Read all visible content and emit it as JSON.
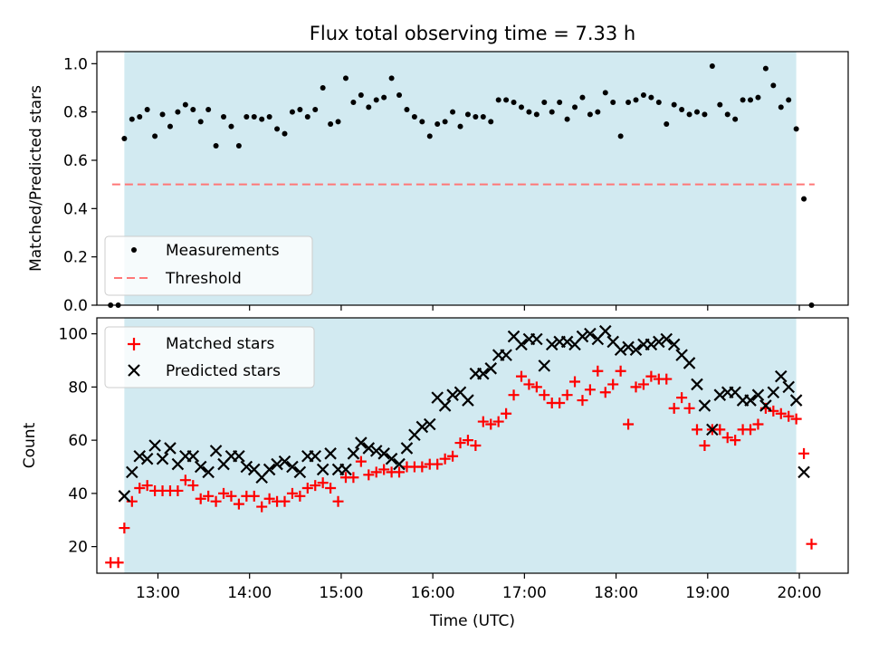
{
  "chart_data": [
    {
      "type": "scatter",
      "title": "Flux total observing time = 7.33 h",
      "xlabel": "",
      "ylabel": "Matched/Predicted stars",
      "xlim": [
        "12:20",
        "20:32"
      ],
      "ylim": [
        0,
        1.05
      ],
      "yticks": [
        "0.0",
        "0.2",
        "0.4",
        "0.6",
        "0.8",
        "1.0"
      ],
      "shaded_span": [
        "12:38",
        "19:58"
      ],
      "shade_color": "#add8e6",
      "legend_position": "lower-left",
      "threshold": {
        "name": "Threshold",
        "y": 0.5,
        "x": [
          "12:30",
          "20:10"
        ],
        "color": "#ff7777",
        "style": "dashed"
      },
      "series": [
        {
          "name": "Measurements",
          "color": "#000000",
          "marker": "dot",
          "x": [
            "12:29",
            "12:34",
            "12:38",
            "12:43",
            "12:48",
            "12:53",
            "12:58",
            "13:03",
            "13:08",
            "13:13",
            "13:18",
            "13:23",
            "13:28",
            "13:33",
            "13:38",
            "13:43",
            "13:48",
            "13:53",
            "13:58",
            "14:03",
            "14:08",
            "14:13",
            "14:18",
            "14:23",
            "14:28",
            "14:33",
            "14:38",
            "14:43",
            "14:48",
            "14:53",
            "14:58",
            "15:03",
            "15:08",
            "15:13",
            "15:18",
            "15:23",
            "15:28",
            "15:33",
            "15:38",
            "15:43",
            "15:48",
            "15:53",
            "15:58",
            "16:03",
            "16:08",
            "16:13",
            "16:18",
            "16:23",
            "16:28",
            "16:33",
            "16:38",
            "16:43",
            "16:48",
            "16:53",
            "16:58",
            "17:03",
            "17:08",
            "17:13",
            "17:18",
            "17:23",
            "17:28",
            "17:33",
            "17:38",
            "17:43",
            "17:48",
            "17:53",
            "17:58",
            "18:03",
            "18:08",
            "18:13",
            "18:18",
            "18:23",
            "18:28",
            "18:33",
            "18:38",
            "18:43",
            "18:48",
            "18:53",
            "18:58",
            "19:03",
            "19:08",
            "19:13",
            "19:18",
            "19:23",
            "19:28",
            "19:33",
            "19:38",
            "19:43",
            "19:48",
            "19:53",
            "19:58",
            "20:03",
            "20:08"
          ],
          "y": [
            0.0,
            0.0,
            0.69,
            0.77,
            0.78,
            0.81,
            0.7,
            0.79,
            0.74,
            0.8,
            0.83,
            0.81,
            0.76,
            0.81,
            0.66,
            0.78,
            0.74,
            0.66,
            0.78,
            0.78,
            0.77,
            0.78,
            0.73,
            0.71,
            0.8,
            0.81,
            0.78,
            0.81,
            0.9,
            0.75,
            0.76,
            0.94,
            0.84,
            0.87,
            0.82,
            0.85,
            0.86,
            0.94,
            0.87,
            0.81,
            0.78,
            0.76,
            0.7,
            0.75,
            0.76,
            0.8,
            0.74,
            0.79,
            0.78,
            0.78,
            0.76,
            0.85,
            0.85,
            0.84,
            0.82,
            0.8,
            0.79,
            0.84,
            0.8,
            0.84,
            0.77,
            0.82,
            0.86,
            0.79,
            0.8,
            0.88,
            0.84,
            0.7,
            0.84,
            0.85,
            0.87,
            0.86,
            0.84,
            0.75,
            0.83,
            0.81,
            0.79,
            0.8,
            0.79,
            0.99,
            0.83,
            0.79,
            0.77,
            0.85,
            0.85,
            0.86,
            0.98,
            0.91,
            0.82,
            0.85,
            0.73,
            0.44,
            0.0
          ]
        }
      ]
    },
    {
      "type": "scatter",
      "title": "",
      "xlabel": "Time (UTC)",
      "ylabel": "Count",
      "xlim": [
        "12:20",
        "20:32"
      ],
      "ylim": [
        10,
        106
      ],
      "yticks": [
        "20",
        "40",
        "60",
        "80",
        "100"
      ],
      "xticks": [
        "13:00",
        "14:00",
        "15:00",
        "16:00",
        "17:00",
        "18:00",
        "19:00",
        "20:00"
      ],
      "shaded_span": [
        "12:38",
        "19:58"
      ],
      "shade_color": "#add8e6",
      "legend_position": "upper-left",
      "series": [
        {
          "name": "Matched stars",
          "color": "#ff0000",
          "marker": "plus",
          "x": [
            "12:29",
            "12:34",
            "12:38",
            "12:43",
            "12:48",
            "12:53",
            "12:58",
            "13:03",
            "13:08",
            "13:13",
            "13:18",
            "13:23",
            "13:28",
            "13:33",
            "13:38",
            "13:43",
            "13:48",
            "13:53",
            "13:58",
            "14:03",
            "14:08",
            "14:13",
            "14:18",
            "14:23",
            "14:28",
            "14:33",
            "14:38",
            "14:43",
            "14:48",
            "14:53",
            "14:58",
            "15:03",
            "15:08",
            "15:13",
            "15:18",
            "15:23",
            "15:28",
            "15:33",
            "15:38",
            "15:43",
            "15:48",
            "15:53",
            "15:58",
            "16:03",
            "16:08",
            "16:13",
            "16:18",
            "16:23",
            "16:28",
            "16:33",
            "16:38",
            "16:43",
            "16:48",
            "16:53",
            "16:58",
            "17:03",
            "17:08",
            "17:13",
            "17:18",
            "17:23",
            "17:28",
            "17:33",
            "17:38",
            "17:43",
            "17:48",
            "17:53",
            "17:58",
            "18:03",
            "18:08",
            "18:13",
            "18:18",
            "18:23",
            "18:28",
            "18:33",
            "18:38",
            "18:43",
            "18:48",
            "18:53",
            "18:58",
            "19:03",
            "19:08",
            "19:13",
            "19:18",
            "19:23",
            "19:28",
            "19:33",
            "19:38",
            "19:43",
            "19:48",
            "19:53",
            "19:58",
            "20:03",
            "20:08"
          ],
          "y": [
            14,
            14,
            27,
            37,
            42,
            43,
            41,
            41,
            41,
            41,
            45,
            43,
            38,
            39,
            37,
            40,
            39,
            36,
            39,
            39,
            35,
            38,
            37,
            37,
            40,
            39,
            42,
            43,
            44,
            42,
            37,
            46,
            46,
            52,
            47,
            48,
            49,
            48,
            48,
            50,
            50,
            50,
            51,
            51,
            53,
            54,
            59,
            60,
            58,
            67,
            66,
            67,
            70,
            77,
            84,
            81,
            80,
            77,
            74,
            74,
            77,
            82,
            75,
            79,
            86,
            78,
            81,
            86,
            66,
            80,
            81,
            84,
            83,
            83,
            72,
            76,
            72,
            64,
            58,
            64,
            64,
            61,
            60,
            64,
            64,
            66,
            72,
            71,
            70,
            69,
            68,
            55,
            21
          ]
        },
        {
          "name": "Predicted stars",
          "color": "#000000",
          "marker": "x",
          "x": [
            "12:38",
            "12:43",
            "12:48",
            "12:53",
            "12:58",
            "13:03",
            "13:08",
            "13:13",
            "13:18",
            "13:23",
            "13:28",
            "13:33",
            "13:38",
            "13:43",
            "13:48",
            "13:53",
            "13:58",
            "14:03",
            "14:08",
            "14:13",
            "14:18",
            "14:23",
            "14:28",
            "14:33",
            "14:38",
            "14:43",
            "14:48",
            "14:53",
            "14:58",
            "15:03",
            "15:08",
            "15:13",
            "15:18",
            "15:23",
            "15:28",
            "15:33",
            "15:38",
            "15:43",
            "15:48",
            "15:53",
            "15:58",
            "16:03",
            "16:08",
            "16:13",
            "16:18",
            "16:23",
            "16:28",
            "16:33",
            "16:38",
            "16:43",
            "16:48",
            "16:53",
            "16:58",
            "17:03",
            "17:08",
            "17:13",
            "17:18",
            "17:23",
            "17:28",
            "17:33",
            "17:38",
            "17:43",
            "17:48",
            "17:53",
            "17:58",
            "18:03",
            "18:08",
            "18:13",
            "18:18",
            "18:23",
            "18:28",
            "18:33",
            "18:38",
            "18:43",
            "18:48",
            "18:53",
            "18:58",
            "19:03",
            "19:08",
            "19:13",
            "19:18",
            "19:23",
            "19:28",
            "19:33",
            "19:38",
            "19:43",
            "19:48",
            "19:53",
            "19:58",
            "20:03"
          ],
          "y": [
            39,
            48,
            54,
            53,
            58,
            53,
            57,
            51,
            54,
            54,
            50,
            48,
            56,
            51,
            54,
            54,
            50,
            49,
            46,
            49,
            51,
            52,
            50,
            48,
            54,
            54,
            49,
            55,
            49,
            49,
            55,
            59,
            57,
            56,
            55,
            53,
            51,
            57,
            62,
            65,
            66,
            76,
            73,
            77,
            78,
            75,
            85,
            85,
            87,
            92,
            92,
            99,
            96,
            98,
            98,
            88,
            96,
            97,
            97,
            96,
            99,
            100,
            98,
            101,
            97,
            94,
            95,
            94,
            96,
            96,
            97,
            98,
            96,
            92,
            89,
            81,
            73,
            64,
            77,
            78,
            78,
            75,
            75,
            77,
            73,
            78,
            84,
            80,
            75,
            48
          ]
        }
      ]
    }
  ]
}
